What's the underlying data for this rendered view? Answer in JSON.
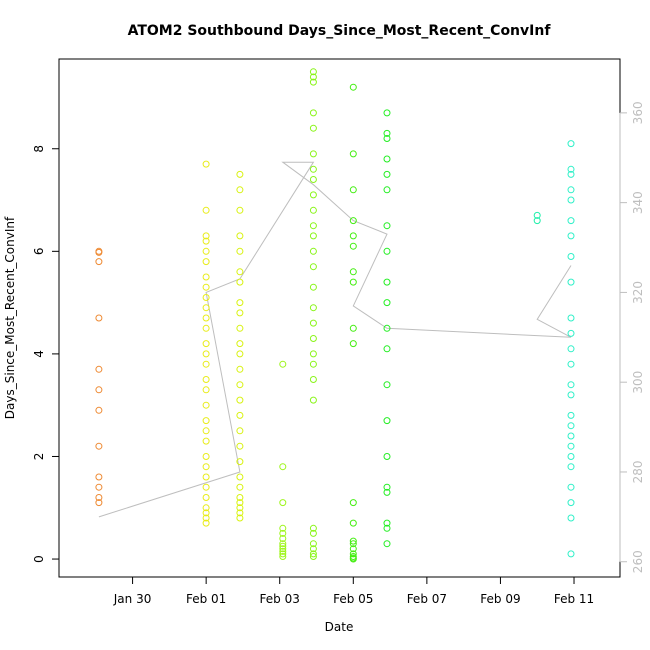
{
  "chart_data": {
    "type": "scatter",
    "title": "ATOM2 Southbound Days_Since_Most_Recent_ConvInf",
    "xlabel": "Date",
    "ylabel": "Days_Since_Most_Recent_ConvInf",
    "xlim": [
      "2020-01-28T00:00",
      "2020-02-12T06:00"
    ],
    "ylim": [
      -0.35,
      9.75
    ],
    "x_ticks": [
      {
        "value": "2020-01-30",
        "label": "Jan 30"
      },
      {
        "value": "2020-02-01",
        "label": "Feb 01"
      },
      {
        "value": "2020-02-03",
        "label": "Feb 03"
      },
      {
        "value": "2020-02-05",
        "label": "Feb 05"
      },
      {
        "value": "2020-02-07",
        "label": "Feb 07"
      },
      {
        "value": "2020-02-09",
        "label": "Feb 09"
      },
      {
        "value": "2020-02-11",
        "label": "Feb 11"
      }
    ],
    "y_ticks": [
      0,
      2,
      4,
      6,
      8
    ],
    "y2_ticks": [
      260,
      280,
      300,
      320,
      340,
      360
    ],
    "y2lim": [
      256.6,
      372.0
    ],
    "grid": false,
    "series": [
      {
        "kind": "points",
        "color": "#ee8a33",
        "x": [
          "2020-01-29T02:00",
          "2020-01-29T02:00",
          "2020-01-29T02:00",
          "2020-01-29T02:00",
          "2020-01-29T02:00",
          "2020-01-29T02:00",
          "2020-01-29T02:00",
          "2020-01-29T02:00",
          "2020-01-29T02:00",
          "2020-01-29T02:00",
          "2020-01-29T02:00",
          "2020-01-29T02:00"
        ],
        "y": [
          6.0,
          5.98,
          5.8,
          4.7,
          3.7,
          3.3,
          2.9,
          2.2,
          1.6,
          1.4,
          1.2,
          1.1
        ]
      },
      {
        "kind": "points",
        "color": "#e8ec1a",
        "x": [
          "2020-02-01T00:00",
          "2020-02-01T00:00",
          "2020-02-01T00:00",
          "2020-02-01T00:00",
          "2020-02-01T00:00",
          "2020-02-01T00:00",
          "2020-02-01T00:00",
          "2020-02-01T00:00",
          "2020-02-01T00:00",
          "2020-02-01T00:00",
          "2020-02-01T00:00",
          "2020-02-01T00:00",
          "2020-02-01T00:00",
          "2020-02-01T00:00",
          "2020-02-01T00:00",
          "2020-02-01T00:00",
          "2020-02-01T00:00",
          "2020-02-01T00:00",
          "2020-02-01T00:00",
          "2020-02-01T00:00",
          "2020-02-01T00:00",
          "2020-02-01T00:00",
          "2020-02-01T00:00",
          "2020-02-01T00:00",
          "2020-02-01T00:00",
          "2020-02-01T00:00",
          "2020-02-01T00:00",
          "2020-02-01T00:00",
          "2020-02-01T00:00",
          "2020-02-01T00:00"
        ],
        "y": [
          7.7,
          6.8,
          6.3,
          6.2,
          6.0,
          5.8,
          5.5,
          5.3,
          5.1,
          4.9,
          4.7,
          4.5,
          4.2,
          4.0,
          3.8,
          3.5,
          3.3,
          3.0,
          2.7,
          2.5,
          2.3,
          2.0,
          1.8,
          1.6,
          1.4,
          1.2,
          1.0,
          0.9,
          0.8,
          0.7
        ]
      },
      {
        "kind": "points",
        "color": "#d8f211",
        "x": [
          "2020-02-01T22:00",
          "2020-02-01T22:00",
          "2020-02-01T22:00",
          "2020-02-01T22:00",
          "2020-02-01T22:00",
          "2020-02-01T22:00",
          "2020-02-01T22:00",
          "2020-02-01T22:00",
          "2020-02-01T22:00",
          "2020-02-01T22:00",
          "2020-02-01T22:00",
          "2020-02-01T22:00",
          "2020-02-01T22:00",
          "2020-02-01T22:00",
          "2020-02-01T22:00",
          "2020-02-01T22:00",
          "2020-02-01T22:00",
          "2020-02-01T22:00",
          "2020-02-01T22:00",
          "2020-02-01T22:00",
          "2020-02-01T22:00",
          "2020-02-01T22:00",
          "2020-02-01T22:00",
          "2020-02-01T22:00",
          "2020-02-01T22:00",
          "2020-02-01T22:00"
        ],
        "y": [
          7.5,
          7.2,
          6.8,
          6.3,
          6.0,
          5.6,
          5.4,
          5.0,
          4.8,
          4.5,
          4.2,
          4.0,
          3.7,
          3.4,
          3.1,
          2.8,
          2.5,
          2.2,
          1.9,
          1.6,
          1.4,
          1.2,
          1.1,
          1.0,
          0.9,
          0.8
        ]
      },
      {
        "kind": "points",
        "color": "#9ef51c",
        "x": [
          "2020-02-03T02:00",
          "2020-02-03T02:00",
          "2020-02-03T02:00",
          "2020-02-03T02:00",
          "2020-02-03T02:00",
          "2020-02-03T02:00",
          "2020-02-03T02:00",
          "2020-02-03T02:00",
          "2020-02-03T02:00",
          "2020-02-03T02:00",
          "2020-02-03T02:00",
          "2020-02-03T02:00"
        ],
        "y": [
          3.8,
          1.8,
          1.1,
          0.6,
          0.5,
          0.4,
          0.3,
          0.25,
          0.2,
          0.15,
          0.1,
          0.05
        ]
      },
      {
        "kind": "points",
        "color": "#8af51a",
        "x": [
          "2020-02-03T22:00",
          "2020-02-03T22:00",
          "2020-02-03T22:00",
          "2020-02-03T22:00",
          "2020-02-03T22:00",
          "2020-02-03T22:00",
          "2020-02-03T22:00",
          "2020-02-03T22:00",
          "2020-02-03T22:00",
          "2020-02-03T22:00",
          "2020-02-03T22:00",
          "2020-02-03T22:00",
          "2020-02-03T22:00",
          "2020-02-03T22:00",
          "2020-02-03T22:00",
          "2020-02-03T22:00",
          "2020-02-03T22:00",
          "2020-02-03T22:00",
          "2020-02-03T22:00",
          "2020-02-03T22:00",
          "2020-02-03T22:00",
          "2020-02-03T22:00",
          "2020-02-03T22:00",
          "2020-02-03T22:00",
          "2020-02-03T22:00",
          "2020-02-03T22:00",
          "2020-02-03T22:00",
          "2020-02-03T22:00"
        ],
        "y": [
          9.5,
          9.4,
          9.3,
          8.7,
          8.4,
          7.9,
          7.6,
          7.4,
          7.1,
          6.8,
          6.5,
          6.3,
          6.0,
          5.7,
          5.3,
          4.9,
          4.6,
          4.3,
          4.0,
          3.8,
          3.5,
          3.1,
          0.6,
          0.5,
          0.3,
          0.2,
          0.1,
          0.05
        ]
      },
      {
        "kind": "points",
        "color": "#44ee11",
        "x": [
          "2020-02-05T00:00",
          "2020-02-05T00:00",
          "2020-02-05T00:00",
          "2020-02-05T00:00",
          "2020-02-05T00:00",
          "2020-02-05T00:00",
          "2020-02-05T00:00",
          "2020-02-05T00:00",
          "2020-02-05T00:00",
          "2020-02-05T00:00",
          "2020-02-05T00:00",
          "2020-02-05T00:00",
          "2020-02-05T00:00",
          "2020-02-05T00:00",
          "2020-02-05T00:00",
          "2020-02-05T00:00",
          "2020-02-05T00:00",
          "2020-02-05T00:00",
          "2020-02-05T00:00"
        ],
        "y": [
          9.2,
          7.9,
          7.2,
          6.6,
          6.3,
          6.1,
          5.6,
          5.4,
          4.5,
          4.2,
          1.1,
          0.7,
          0.35,
          0.3,
          0.2,
          0.1,
          0.05,
          0.02,
          0.0
        ]
      },
      {
        "kind": "points",
        "color": "#22ee22",
        "x": [
          "2020-02-05T22:00",
          "2020-02-05T22:00",
          "2020-02-05T22:00",
          "2020-02-05T22:00",
          "2020-02-05T22:00",
          "2020-02-05T22:00",
          "2020-02-05T22:00",
          "2020-02-05T22:00",
          "2020-02-05T22:00",
          "2020-02-05T22:00",
          "2020-02-05T22:00",
          "2020-02-05T22:00",
          "2020-02-05T22:00",
          "2020-02-05T22:00",
          "2020-02-05T22:00",
          "2020-02-05T22:00",
          "2020-02-05T22:00",
          "2020-02-05T22:00",
          "2020-02-05T22:00",
          "2020-02-05T22:00"
        ],
        "y": [
          8.7,
          8.3,
          8.2,
          7.8,
          7.5,
          7.2,
          6.5,
          6.0,
          5.4,
          5.0,
          4.5,
          4.1,
          3.4,
          2.7,
          2.0,
          1.4,
          1.3,
          0.7,
          0.6,
          0.3
        ]
      },
      {
        "kind": "points",
        "color": "#1fefaa",
        "x": [
          "2020-02-10T00:00",
          "2020-02-10T00:00"
        ],
        "y": [
          6.7,
          6.6
        ]
      },
      {
        "kind": "points",
        "color": "#2ff0c8",
        "x": [
          "2020-02-10T22:00",
          "2020-02-10T22:00",
          "2020-02-10T22:00",
          "2020-02-10T22:00",
          "2020-02-10T22:00",
          "2020-02-10T22:00",
          "2020-02-10T22:00",
          "2020-02-10T22:00",
          "2020-02-10T22:00",
          "2020-02-10T22:00",
          "2020-02-10T22:00",
          "2020-02-10T22:00",
          "2020-02-10T22:00",
          "2020-02-10T22:00",
          "2020-02-10T22:00",
          "2020-02-10T22:00",
          "2020-02-10T22:00",
          "2020-02-10T22:00",
          "2020-02-10T22:00",
          "2020-02-10T22:00",
          "2020-02-10T22:00",
          "2020-02-10T22:00",
          "2020-02-10T22:00",
          "2020-02-10T22:00",
          "2020-02-10T22:00"
        ],
        "y": [
          8.1,
          7.6,
          7.5,
          7.2,
          7.0,
          6.6,
          6.3,
          5.9,
          5.4,
          4.7,
          4.4,
          4.1,
          3.8,
          3.4,
          3.2,
          2.8,
          2.6,
          2.4,
          2.2,
          2.0,
          1.8,
          1.4,
          1.1,
          0.8,
          0.1
        ]
      },
      {
        "kind": "line",
        "color": "#bebebe",
        "axis": "right",
        "x": [
          "2020-01-29T02:00",
          "2020-02-01T22:00",
          "2020-02-01T00:00",
          "2020-02-01T22:00",
          "2020-02-03T22:00",
          "2020-02-03T02:00",
          "2020-02-03T22:00",
          "2020-02-05T00:00",
          "2020-02-05T22:00",
          "2020-02-05T00:00",
          "2020-02-05T22:00",
          "2020-02-10T22:00",
          "2020-02-10T00:00",
          "2020-02-10T22:00"
        ],
        "y": [
          270,
          280,
          320,
          323,
          349,
          349,
          344,
          336,
          333,
          317,
          312,
          310,
          314,
          326
        ]
      }
    ]
  }
}
